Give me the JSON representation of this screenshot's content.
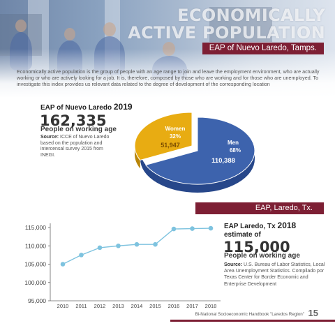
{
  "header": {
    "title_line1": "ECONOMICALLY",
    "title_line2": "ACTIVE POPULATION",
    "ribbon_top": "EAP of Nuevo Laredo, Tamps."
  },
  "intro_text": "Economically active population is the group of people with an age range to join and leave the employment environment, who are actually working or who are actively looking for a job. It is, therefore, composed by those who are working and for those who are unemployed. To investigate this index provides us relevant data related to the degree of development of the corresponding location",
  "nuevo_laredo": {
    "heading": "EAP of Nuevo Laredo",
    "year": "2019",
    "value": "162,335",
    "label": "People on working age",
    "source_label": "Source:",
    "source_text": "ICCE of Nuevo Laredo based on the population and intercensal survey 2015 from INEGI."
  },
  "ribbon_mid": "EAP,  Laredo, Tx.",
  "laredo_tx": {
    "heading": "EAP Laredo, Tx",
    "year": "2018",
    "heading_line2": "estimate of",
    "value": "115,000",
    "label": "People on working age",
    "source_label": "Source:",
    "source_text": "U.S. Bureau of Labor Statistics, Local Area Unemployment Statistics. Compilado por Texas Center for Border Economic and Enterprise Development"
  },
  "footer": {
    "text": "Bi-National Socioeconomic Handbook \"Laredos Region\"",
    "page": "15"
  },
  "colors": {
    "maroon": "#7d1f34",
    "men_blue": "#3d63ad",
    "women_gold": "#e8ac12",
    "line_blue": "#7ec3df"
  },
  "chart_data": [
    {
      "type": "pie",
      "slices": [
        {
          "name": "Men",
          "percent": "68%",
          "value": "110,388",
          "numeric": 110388
        },
        {
          "name": "Women",
          "percent": "32%",
          "value": "51,947",
          "numeric": 51947
        }
      ]
    },
    {
      "type": "line",
      "x": [
        "2010",
        "2011",
        "2012",
        "2013",
        "2014",
        "2015",
        "2016",
        "2017",
        "2018"
      ],
      "values": [
        105000,
        107500,
        109500,
        110000,
        110400,
        110400,
        114600,
        114700,
        114800
      ],
      "yticks": [
        "95,000",
        "100,000",
        "105,000",
        "110,000",
        "115,000"
      ],
      "ylim": [
        95000,
        115000
      ],
      "grid": false
    }
  ]
}
